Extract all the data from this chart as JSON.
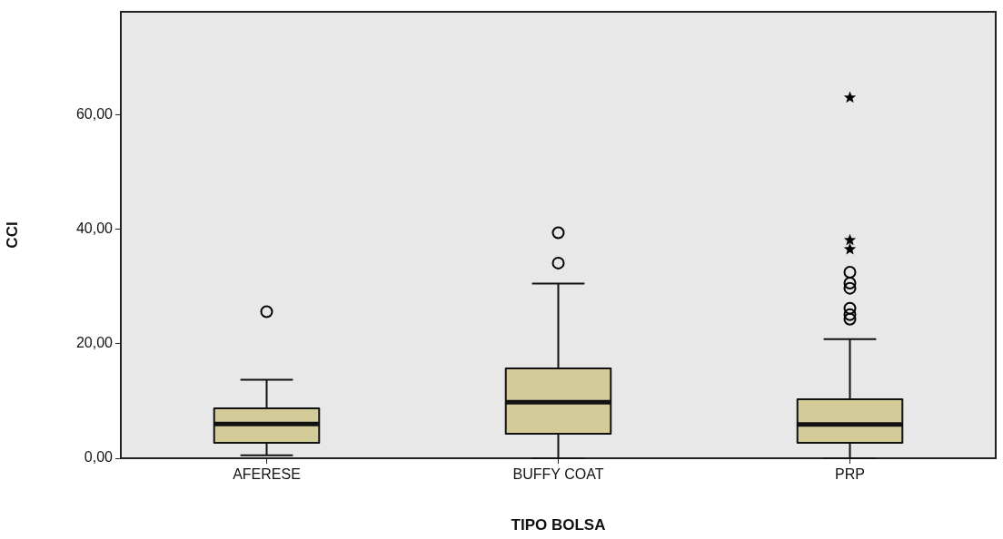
{
  "chart_data": {
    "type": "box",
    "xlabel": "TIPO BOLSA",
    "ylabel": "CCI",
    "categories": [
      "AFERESE",
      "BUFFY COAT",
      "PRP"
    ],
    "series": [
      {
        "type": "box",
        "color": "#d3cc98",
        "marker": "circle",
        "boxes": [
          {
            "low": 0.5,
            "q1": 2.7,
            "median": 6.0,
            "q3": 8.7,
            "high": 13.7,
            "outliers": [
              25.6
            ]
          },
          {
            "low": 0,
            "q1": 4.3,
            "median": 9.8,
            "q3": 15.7,
            "high": 30.5,
            "outliers": [
              39.4,
              34.1
            ]
          },
          {
            "low": 0,
            "q1": 2.7,
            "median": 5.9,
            "q3": 10.3,
            "high": 20.8,
            "outliers": [
              32.5,
              30.6,
              29.7,
              26.2,
              25.1,
              24.3
            ]
          }
        ]
      },
      {
        "type": "scatter",
        "color": "#000000",
        "marker": "star",
        "x": [
          "PRP",
          "PRP",
          "PRP"
        ],
        "values": [
          63.0,
          38.1,
          36.5
        ]
      }
    ],
    "ylim": [
      0,
      78
    ],
    "yticks": [
      {
        "value": 0,
        "label": "0,00"
      },
      {
        "value": 20,
        "label": "20,00"
      },
      {
        "value": 40,
        "label": "40,00"
      },
      {
        "value": 60,
        "label": "60,00"
      }
    ],
    "grid": false,
    "legend": false
  }
}
